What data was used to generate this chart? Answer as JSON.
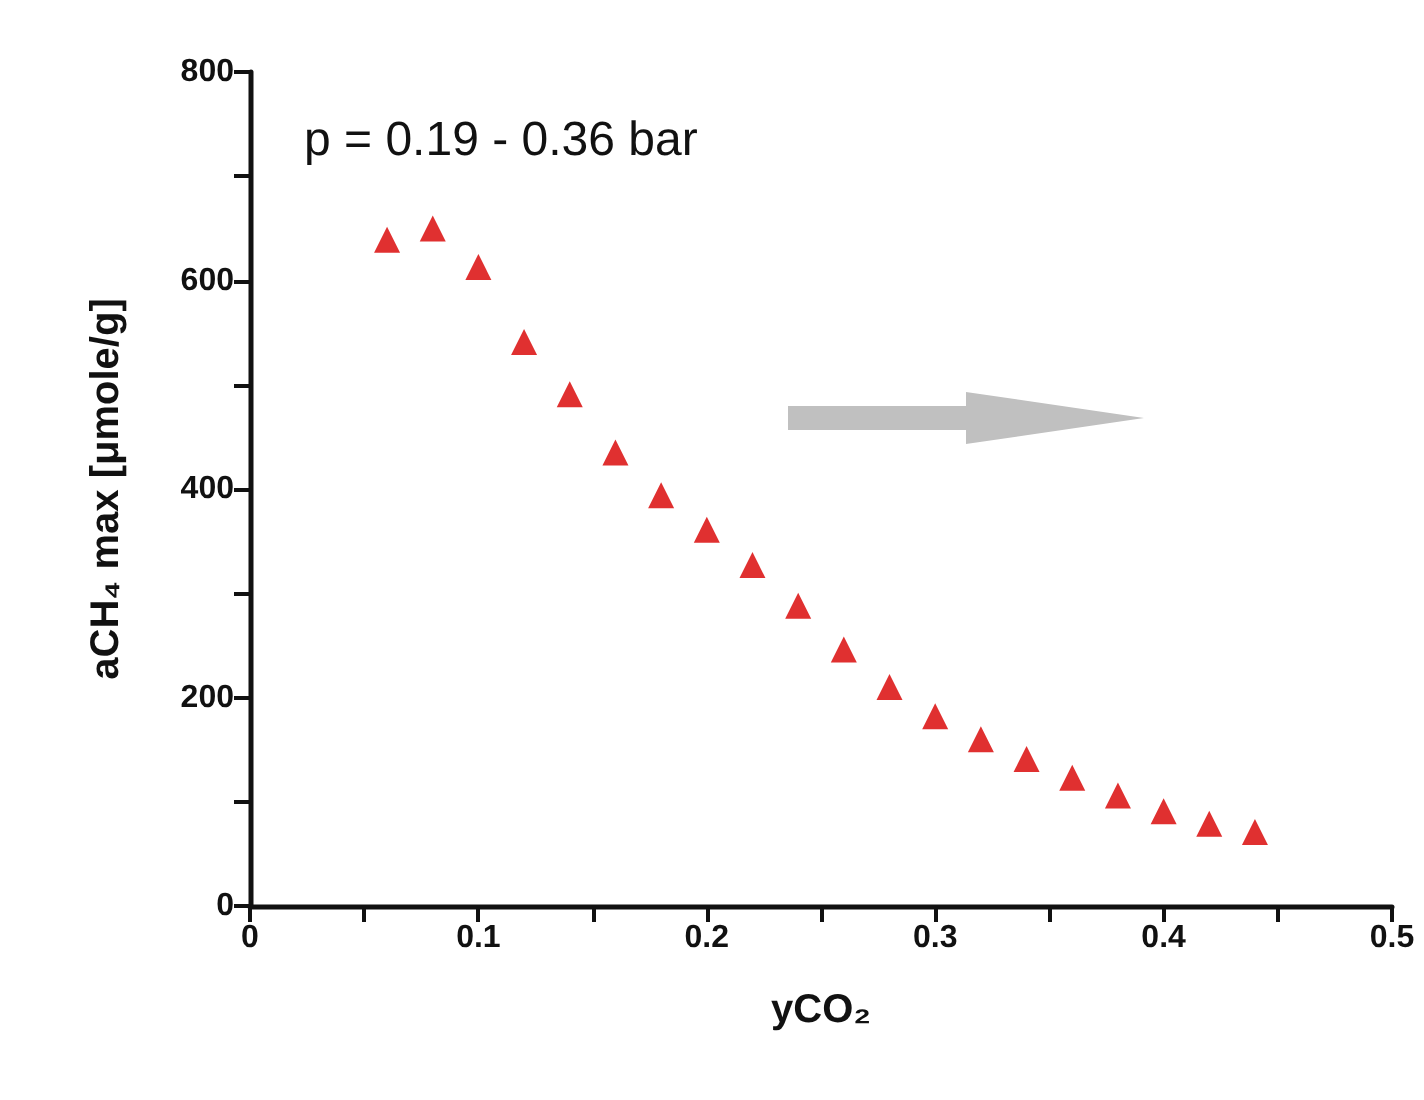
{
  "chart_data": {
    "type": "scatter",
    "xlabel": "yCO₂",
    "ylabel": "aCH₄ max [μmole/g]",
    "annotations": [
      "p = 0.19 - 0.36 bar"
    ],
    "x": [
      0.06,
      0.08,
      0.1,
      0.12,
      0.14,
      0.16,
      0.18,
      0.2,
      0.22,
      0.24,
      0.26,
      0.28,
      0.3,
      0.32,
      0.34,
      0.36,
      0.38,
      0.4,
      0.42,
      0.44
    ],
    "series": [
      {
        "color": "#e03030",
        "values": [
          639,
          650,
          613,
          541,
          491,
          435,
          394,
          361,
          327,
          288,
          246,
          210,
          182,
          160,
          141,
          123,
          106,
          91,
          79,
          71
        ]
      }
    ],
    "marker": "triangle",
    "grid": false,
    "xlim": [
      0,
      0.5
    ],
    "xticks": [
      0,
      {
        "value": 0.05,
        "label": null
      },
      0.1,
      {
        "value": 0.15,
        "label": null
      },
      0.2,
      {
        "value": 0.25,
        "label": null
      },
      0.3,
      {
        "value": 0.35,
        "label": null
      },
      0.4,
      {
        "value": 0.45,
        "label": null
      },
      0.5
    ],
    "ylim": [
      0,
      800
    ],
    "yticks": [
      0,
      {
        "value": 100,
        "label": null
      },
      200,
      {
        "value": 300,
        "label": null
      },
      400,
      {
        "value": 500,
        "label": null
      },
      600,
      {
        "value": 700,
        "label": null
      },
      800
    ]
  }
}
